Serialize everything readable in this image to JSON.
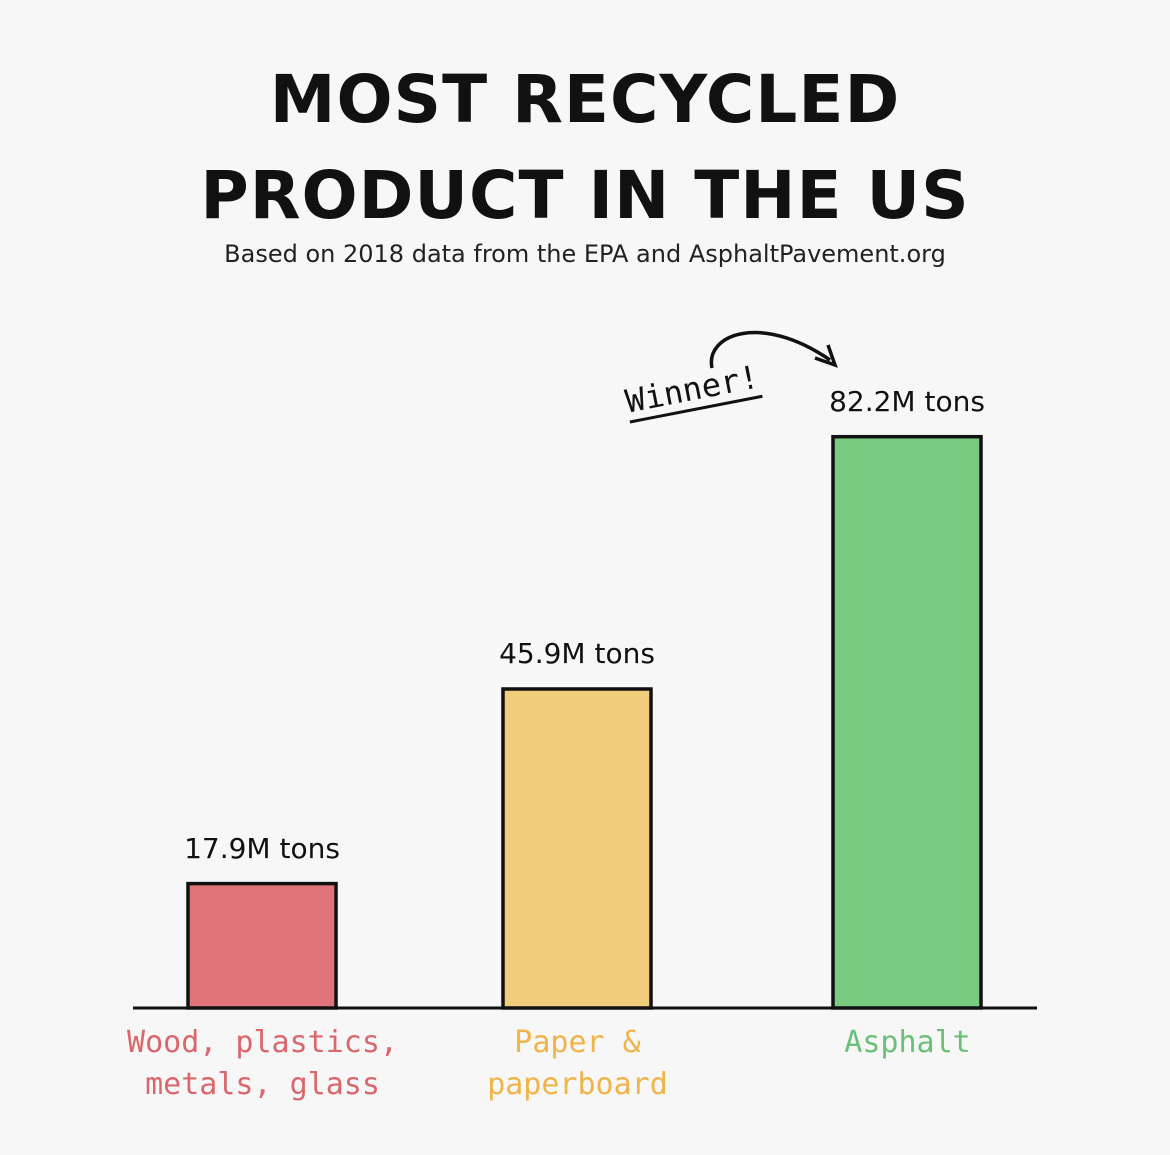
{
  "chart_data": {
    "type": "bar",
    "title": "MOST RECYCLED PRODUCT IN THE US",
    "subtitle": "Based on 2018 data from the EPA and AsphaltPavement.org",
    "annotation": "Winner!",
    "categories": [
      "Wood, plastics, metals, glass",
      "Paper & paperboard",
      "Asphalt"
    ],
    "values": [
      17.9,
      45.9,
      82.2
    ],
    "value_labels": [
      "17.9M tons",
      "45.9M tons",
      "82.2M tons"
    ],
    "colors": [
      "#e07478",
      "#f0cd7a",
      "#7acb82"
    ],
    "label_colors": [
      "#d9686c",
      "#efb54a",
      "#6cbf78"
    ]
  }
}
